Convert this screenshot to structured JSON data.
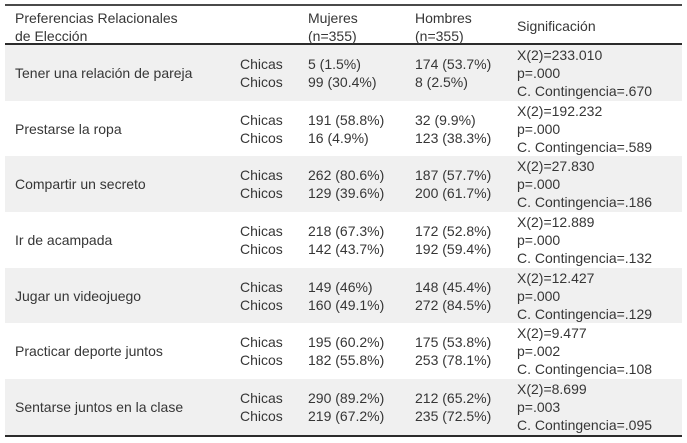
{
  "header": {
    "preference": "Preferencias Relacionales\nde Elección",
    "mujeres": "Mujeres\n(n=355)",
    "hombres": "Hombres\n(n=355)",
    "significacion": "Significación"
  },
  "labels": {
    "chicas": "Chicas",
    "chicos": "Chicos"
  },
  "rows": [
    {
      "label": "Tener una relación de pareja",
      "mujeres": {
        "chicas": "5 (1.5%)",
        "chicos": "99 (30.4%)"
      },
      "hombres": {
        "chicas": "174 (53.7%)",
        "chicos": "8 (2.5%)"
      },
      "sig": {
        "chi": "X(2)=233.010",
        "p": "p=.000",
        "cc": "C. Contingencia=.670"
      }
    },
    {
      "label": "Prestarse la ropa",
      "mujeres": {
        "chicas": "191 (58.8%)",
        "chicos": "16 (4.9%)"
      },
      "hombres": {
        "chicas": "32 (9.9%)",
        "chicos": "123 (38.3%)"
      },
      "sig": {
        "chi": "X(2)=192.232",
        "p": "p=.000",
        "cc": "C. Contingencia=.589"
      }
    },
    {
      "label": "Compartir un secreto",
      "mujeres": {
        "chicas": "262 (80.6%)",
        "chicos": "129 (39.6%)"
      },
      "hombres": {
        "chicas": "187 (57.7%)",
        "chicos": "200 (61.7%)"
      },
      "sig": {
        "chi": "X(2)=27.830",
        "p": "p=.000",
        "cc": "C. Contingencia=.186"
      }
    },
    {
      "label": "Ir de acampada",
      "mujeres": {
        "chicas": "218 (67.3%)",
        "chicos": "142 (43.7%)"
      },
      "hombres": {
        "chicas": "172 (52.8%)",
        "chicos": "192 (59.4%)"
      },
      "sig": {
        "chi": "X(2)=12.889",
        "p": "p=.000",
        "cc": "C. Contingencia=.132"
      }
    },
    {
      "label": "Jugar un videojuego",
      "mujeres": {
        "chicas": "149 (46%)",
        "chicos": "160 (49.1%)"
      },
      "hombres": {
        "chicas": "148 (45.4%)",
        "chicos": "272 (84.5%)"
      },
      "sig": {
        "chi": "X(2)=12.427",
        "p": "p=.000",
        "cc": "C. Contingencia=.129"
      }
    },
    {
      "label": "Practicar deporte juntos",
      "mujeres": {
        "chicas": "195 (60.2%)",
        "chicos": "182 (55.8%)"
      },
      "hombres": {
        "chicas": "175 (53.8%)",
        "chicos": "253 (78.1%)"
      },
      "sig": {
        "chi": "X(2)=9.477",
        "p": "p=.002",
        "cc": "C. Contingencia=.108"
      }
    },
    {
      "label": "Sentarse juntos en la clase",
      "mujeres": {
        "chicas": "290 (89.2%)",
        "chicos": "219 (67.2%)"
      },
      "hombres": {
        "chicas": "212 (65.2%)",
        "chicos": "235 (72.5%)"
      },
      "sig": {
        "chi": "X(2)=8.699",
        "p": "p=.003",
        "cc": "C. Contingencia=.095"
      }
    }
  ],
  "colors": {
    "row_shade": "#f0f0f0",
    "text": "#363636",
    "border_dark": "#2b2b2b",
    "border_top": "#4a4a4a",
    "background": "#ffffff"
  }
}
